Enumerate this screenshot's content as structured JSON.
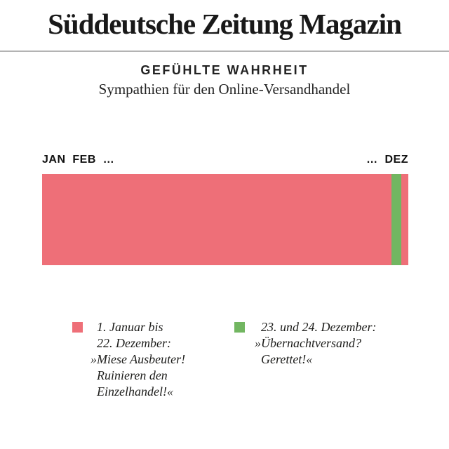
{
  "masthead": {
    "title": "Süddeutsche Zeitung Magazin"
  },
  "header": {
    "title": "GEFÜHLTE WAHRHEIT",
    "subtitle": "Sympathien für den Online-Versandhandel"
  },
  "axis": {
    "left": "JAN  FEB  …",
    "right": "…  DEZ"
  },
  "chart_data": {
    "type": "bar",
    "variant": "single horizontal timeline bar (Jan–Dez)",
    "title": "GEFÜHLTE WAHRHEIT",
    "subtitle": "Sympathien für den Online-Versandhandel",
    "x_axis_labels": [
      "JAN",
      "FEB",
      "…",
      "…",
      "DEZ"
    ],
    "segments": [
      {
        "period": "1. Januar bis 22. Dezember",
        "sentiment": "»Miese Ausbeuter! Ruinieren den Einzelhandel!«",
        "color": "#ee6f78",
        "fraction": 0.954
      },
      {
        "period": "23. und 24. Dezember",
        "sentiment": "»Übernachtversand? Gerettet!«",
        "color": "#72b661",
        "fraction": 0.027
      },
      {
        "period": "",
        "sentiment": "",
        "color": "#ee6f78",
        "fraction": 0.019
      }
    ],
    "legend_position": "bottom",
    "grid": false
  },
  "legend": {
    "items": [
      {
        "color": "#ee6f78",
        "lines": [
          "1. Januar bis",
          "22. Dezember:",
          "»Miese Ausbeuter!",
          "Ruinieren den",
          "Einzelhandel!«"
        ]
      },
      {
        "color": "#72b661",
        "lines": [
          "23. und 24. Dezember:",
          "»Übernachtversand?",
          "Gerettet!«"
        ]
      }
    ]
  },
  "colors": {
    "pink": "#ee6f78",
    "green": "#72b661",
    "divider": "#b3b3b3",
    "text": "#1d1d1b"
  }
}
